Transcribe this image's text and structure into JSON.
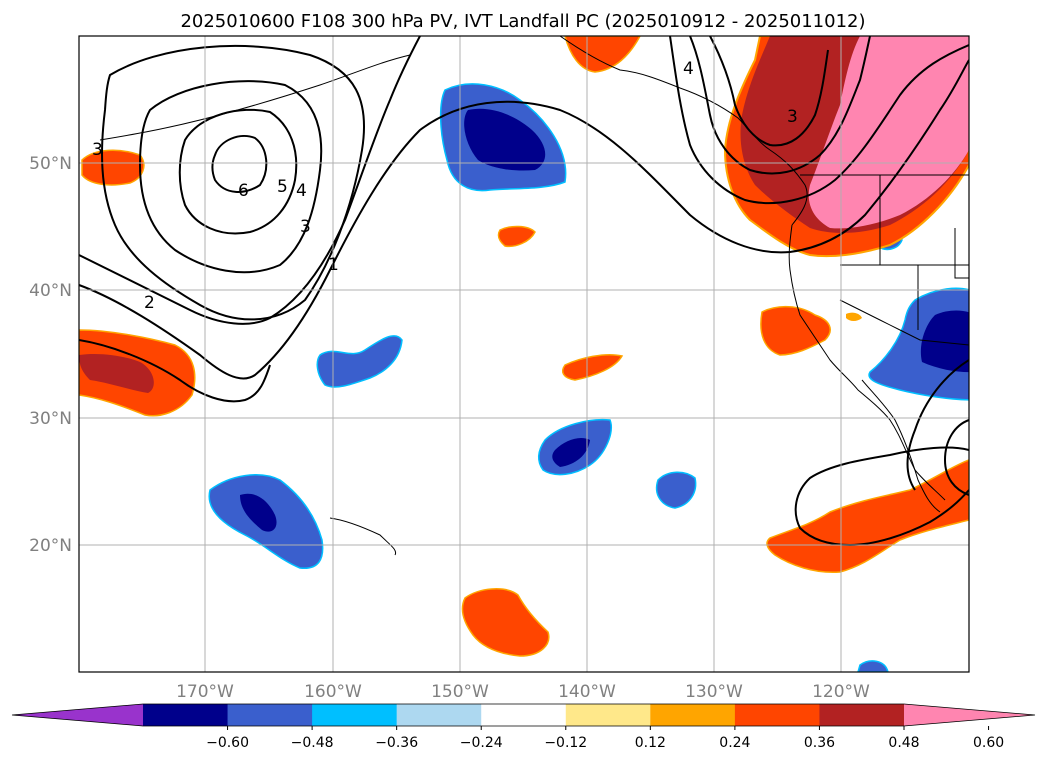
{
  "title": "2025010600 F108 300 hPa PV, IVT Landfall PC (2025010912 - 2025011012)",
  "map": {
    "lat_labels": [
      "50°N",
      "40°N",
      "30°N",
      "20°N"
    ],
    "lon_labels": [
      "170°W",
      "160°W",
      "150°W",
      "140°W",
      "130°W",
      "120°W"
    ],
    "extent": {
      "lon": [
        -180,
        -110
      ],
      "lat": [
        10,
        60
      ]
    },
    "grid": true,
    "contour_labels": [
      "3",
      "6",
      "5",
      "4",
      "3",
      "1",
      "2",
      "3",
      "4"
    ]
  },
  "colorbar": {
    "ticks": [
      "−0.60",
      "−0.48",
      "−0.36",
      "−0.24",
      "−0.12",
      "0.12",
      "0.24",
      "0.36",
      "0.48",
      "0.60"
    ],
    "colors": [
      "#9933cc",
      "#00008b",
      "#3a5fcd",
      "#00bfff",
      "#add8f0",
      "#ffffff",
      "#ffe88a",
      "#ffa500",
      "#ff4500",
      "#b22222",
      "#ff85b0"
    ]
  }
}
